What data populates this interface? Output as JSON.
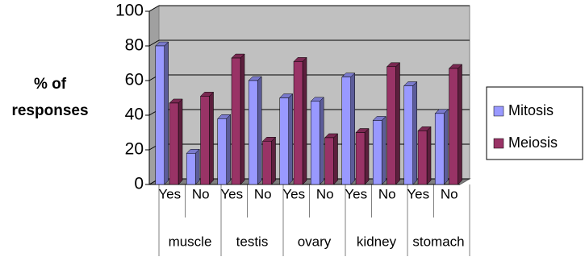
{
  "chart_data": {
    "type": "bar3d",
    "y_label_lines": [
      "% of",
      "responses"
    ],
    "categories": [
      "Yes",
      "No",
      "Yes",
      "No",
      "Yes",
      "No",
      "Yes",
      "No",
      "Yes",
      "No"
    ],
    "groups": [
      "muscle",
      "testis",
      "ovary",
      "kidney",
      "stomach"
    ],
    "series": [
      {
        "name": "Mitosis",
        "color": "#9999ff",
        "values": [
          80,
          18,
          38,
          60,
          50,
          48,
          62,
          37,
          57,
          41
        ]
      },
      {
        "name": "Meiosis",
        "color": "#993366",
        "values": [
          47,
          51,
          73,
          25,
          71,
          27,
          30,
          68,
          31,
          67
        ]
      }
    ],
    "ylim": [
      0,
      100
    ],
    "yticks": [
      0,
      20,
      40,
      60,
      80,
      100
    ],
    "grid": true,
    "legend": "right"
  }
}
